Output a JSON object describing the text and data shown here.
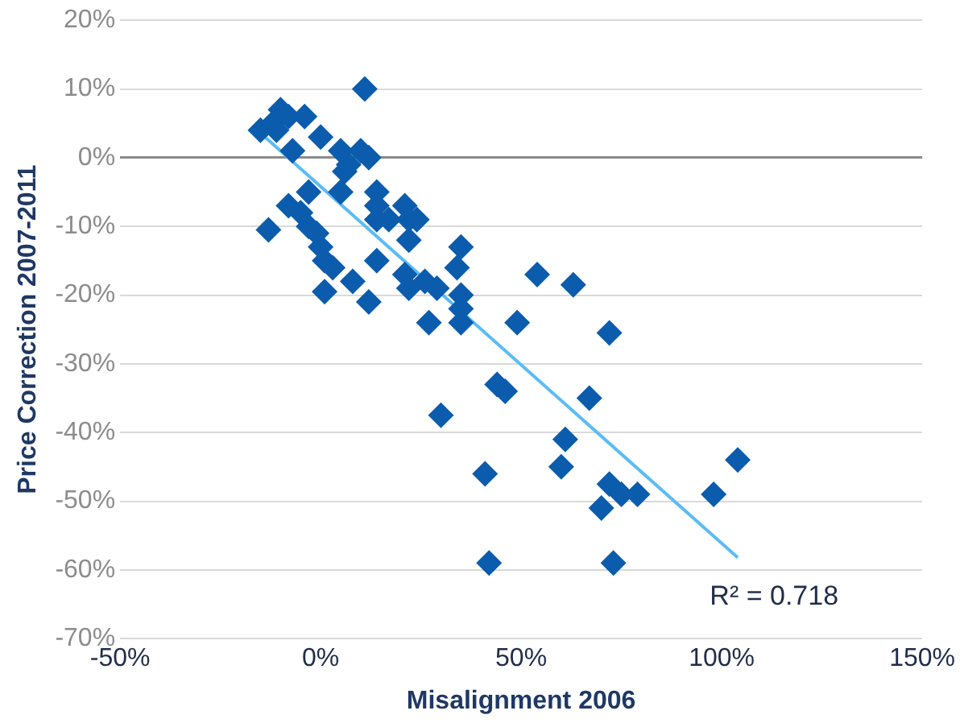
{
  "chart_data": {
    "type": "scatter",
    "xlabel": "Misalignment 2006",
    "ylabel": "Price Correction 2007-2011",
    "xlim": [
      -50,
      150
    ],
    "xticks": [
      {
        "value": -50,
        "label": "-50%"
      },
      {
        "value": 0,
        "label": "0%"
      },
      {
        "value": 50,
        "label": "50%"
      },
      {
        "value": 100,
        "label": "100%"
      },
      {
        "value": 150,
        "label": "150%"
      }
    ],
    "ylim": [
      -70,
      20
    ],
    "yticks": [
      {
        "value": -70,
        "label": "-70%"
      },
      {
        "value": -60,
        "label": "-60%"
      },
      {
        "value": -50,
        "label": "-50%"
      },
      {
        "value": -40,
        "label": "-40%"
      },
      {
        "value": -30,
        "label": "-30%"
      },
      {
        "value": -20,
        "label": "-20%"
      },
      {
        "value": -10,
        "label": "-10%"
      },
      {
        "value": 0,
        "label": "0%"
      },
      {
        "value": 10,
        "label": "10%"
      },
      {
        "value": 20,
        "label": "20%"
      }
    ],
    "grid": "y",
    "legend": false,
    "marker": "diamond",
    "annotations": [
      "R² = 0.718"
    ],
    "series": [
      {
        "color": "#0b5cad",
        "x": [
          -15,
          -13,
          -12,
          -10,
          -11,
          -8,
          -7,
          -4,
          0,
          -8,
          -5,
          -3,
          -3,
          -1,
          0,
          1,
          3,
          1,
          8,
          5,
          6,
          5,
          7,
          10,
          12,
          11,
          14,
          14,
          14,
          17,
          14,
          12,
          21,
          22,
          24,
          22,
          21,
          22,
          26,
          29,
          27,
          35,
          34,
          35,
          35,
          35,
          30,
          49,
          54,
          63,
          44,
          46,
          72,
          67,
          61,
          60,
          41,
          72,
          75,
          79,
          70,
          42,
          73,
          98,
          104
        ],
        "values": [
          4,
          -10.5,
          5,
          7,
          4,
          6,
          1,
          6,
          3,
          -7,
          -8,
          -5,
          -10,
          -11,
          -13,
          -15,
          -16,
          -19.5,
          -18,
          1,
          -2,
          -5,
          -1,
          1,
          0,
          10,
          -5,
          -7,
          -9,
          -9,
          -15,
          -21,
          -7,
          -9,
          -9,
          -12,
          -17,
          -19,
          -18,
          -19,
          -24,
          -13,
          -16,
          -20,
          -22,
          -24,
          -37.5,
          -24,
          -17,
          -18.5,
          -33,
          -34,
          -25.5,
          -35,
          -41,
          -45,
          -46,
          -47.5,
          -49,
          -49,
          -51,
          -59,
          -59,
          -49,
          -44
        ]
      },
      {
        "type": "line",
        "color": "#5bbcf5",
        "marker": "none",
        "x": [
          -15,
          104
        ],
        "values": [
          3.6,
          -58.2
        ]
      }
    ]
  }
}
